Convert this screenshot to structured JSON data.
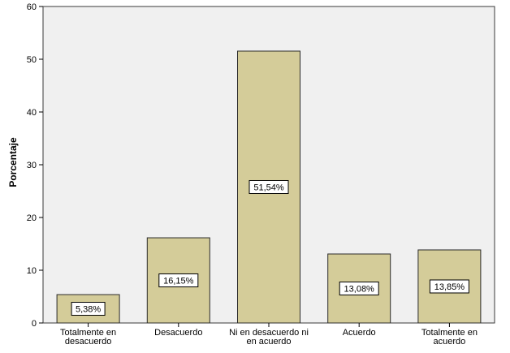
{
  "chart_data": {
    "type": "bar",
    "title": "",
    "xlabel": "",
    "ylabel": "Porcentaje",
    "ylim": [
      0,
      60
    ],
    "yticks": [
      "0",
      "10",
      "20",
      "30",
      "40",
      "50",
      "60"
    ],
    "categories": [
      [
        "Totalmente en",
        "desacuerdo"
      ],
      [
        "Desacuerdo"
      ],
      [
        "Ni en desacuerdo ni",
        "en acuerdo"
      ],
      [
        "Acuerdo"
      ],
      [
        "Totalmente en",
        "acuerdo"
      ]
    ],
    "values": [
      5.38,
      16.15,
      51.54,
      13.08,
      13.85
    ],
    "value_labels": [
      "5,38%",
      "16,15%",
      "51,54%",
      "13,08%",
      "13,85%"
    ],
    "grid": false,
    "colors": {
      "bar_fill": "#d4cc99",
      "bar_stroke": "#2b2b2b",
      "plot_bg": "#f0f0f0",
      "plot_border": "#3a3a3a",
      "label_box_bg": "#ffffff"
    }
  }
}
